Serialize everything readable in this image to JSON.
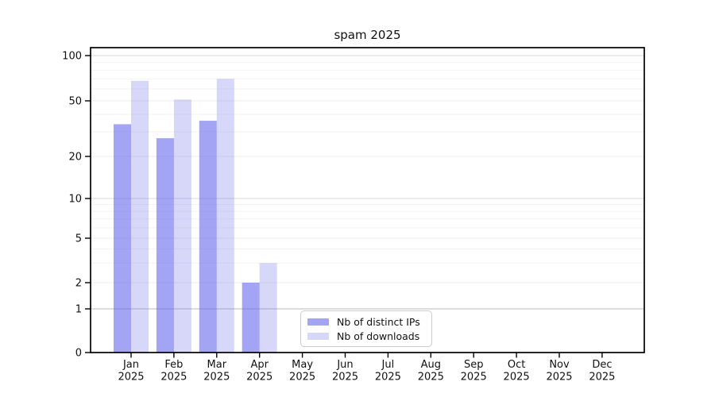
{
  "chart_data": {
    "type": "bar",
    "title": "spam 2025",
    "categories": [
      "Jan",
      "Feb",
      "Mar",
      "Apr",
      "May",
      "Jun",
      "Jul",
      "Aug",
      "Sep",
      "Oct",
      "Nov",
      "Dec"
    ],
    "year_label": "2025",
    "series": [
      {
        "name": "Nb of distinct IPs",
        "color": "rgba(108,108,238,0.62)",
        "values": [
          34,
          27,
          36,
          2,
          0,
          0,
          0,
          0,
          0,
          0,
          0,
          0
        ]
      },
      {
        "name": "Nb of downloads",
        "color": "rgba(108,108,238,0.27)",
        "values": [
          68,
          51,
          70,
          3,
          0,
          0,
          0,
          0,
          0,
          0,
          0,
          0
        ]
      }
    ],
    "yticks": [
      0,
      1,
      2,
      5,
      10,
      20,
      50,
      100
    ],
    "ylim": [
      0,
      100
    ],
    "yscale": "log-like with 0 baseline",
    "grid": true,
    "legend_position": "inside-bottom-center",
    "axis_color": "#000000"
  }
}
